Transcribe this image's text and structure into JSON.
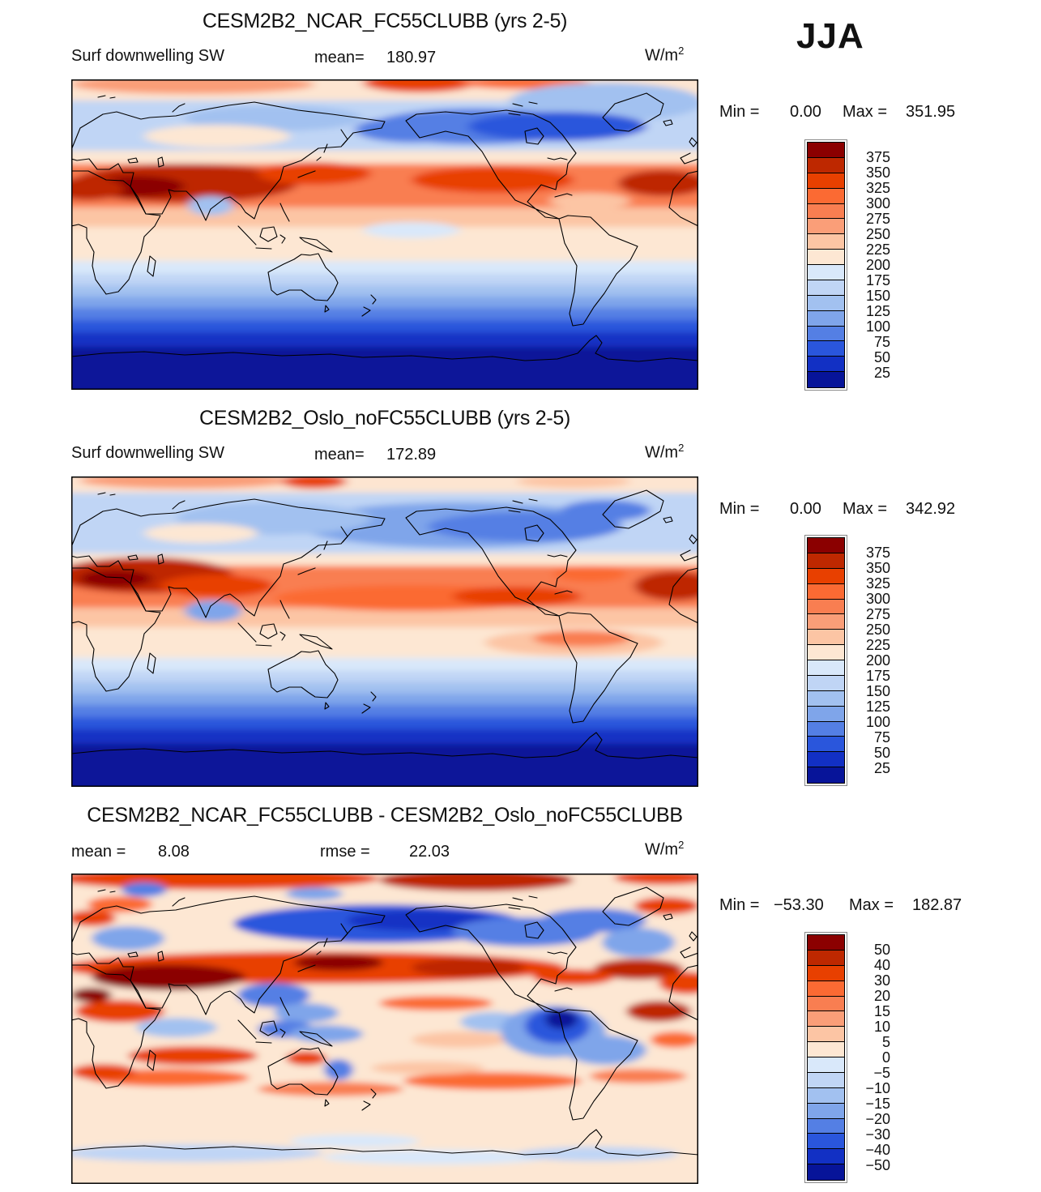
{
  "season_label": "JJA",
  "palette": [
    "#8B0000",
    "#BE2800",
    "#E84000",
    "#FB6A33",
    "#F97E51",
    "#FA9E78",
    "#FCC5A4",
    "#FDE7D3",
    "#D9E8FA",
    "#C0D5F5",
    "#A2C1F0",
    "#7FA5EA",
    "#547FE4",
    "#2A56DC",
    "#1230C4",
    "#071499"
  ],
  "panels": [
    {
      "title": "CESM2B2_NCAR_FC55CLUBB (yrs 2-5)",
      "variable": "Surf downwelling SW",
      "mean_label": "mean=",
      "mean_value": "180.97",
      "units_base": "W/m",
      "units_exp": "2",
      "min_label": "Min =",
      "min_value": "0.00",
      "max_label": "Max =",
      "max_value": "351.95",
      "colorbar_labels": [
        "375",
        "350",
        "325",
        "300",
        "275",
        "250",
        "225",
        "200",
        "175",
        "150",
        "125",
        "100",
        "75",
        "50",
        "25"
      ]
    },
    {
      "title": "CESM2B2_Oslo_noFC55CLUBB (yrs 2-5)",
      "variable": "Surf downwelling SW",
      "mean_label": "mean=",
      "mean_value": "172.89",
      "units_base": "W/m",
      "units_exp": "2",
      "min_label": "Min =",
      "min_value": "0.00",
      "max_label": "Max =",
      "max_value": "342.92",
      "colorbar_labels": [
        "375",
        "350",
        "325",
        "300",
        "275",
        "250",
        "225",
        "200",
        "175",
        "150",
        "125",
        "100",
        "75",
        "50",
        "25"
      ]
    },
    {
      "title": "CESM2B2_NCAR_FC55CLUBB - CESM2B2_Oslo_noFC55CLUBB",
      "mean_label": "mean =",
      "mean_value": "8.08",
      "rmse_label": "rmse =",
      "rmse_value": "22.03",
      "units_base": "W/m",
      "units_exp": "2",
      "min_label": "Min =",
      "min_value": "−53.30",
      "max_label": "Max =",
      "max_value": "182.87",
      "colorbar_labels": [
        "50",
        "40",
        "30",
        "20",
        "15",
        "10",
        "5",
        "0",
        "−5",
        "−10",
        "−15",
        "−20",
        "−30",
        "−40",
        "−50"
      ]
    }
  ],
  "chart_data": [
    {
      "type": "heatmap",
      "subtype": "filled-contour global map",
      "title": "CESM2B2_NCAR_FC55CLUBB (yrs 2-5)",
      "variable": "Surf downwelling SW",
      "season": "JJA",
      "units": "W/m2",
      "mean": 180.97,
      "min": 0.0,
      "max": 351.95,
      "contour_levels": [
        25,
        50,
        75,
        100,
        125,
        150,
        175,
        200,
        225,
        250,
        275,
        300,
        325,
        350,
        375
      ],
      "colormap": "blue-to-red, 16 discrete levels",
      "legend_position": "right"
    },
    {
      "type": "heatmap",
      "subtype": "filled-contour global map",
      "title": "CESM2B2_Oslo_noFC55CLUBB (yrs 2-5)",
      "variable": "Surf downwelling SW",
      "season": "JJA",
      "units": "W/m2",
      "mean": 172.89,
      "min": 0.0,
      "max": 342.92,
      "contour_levels": [
        25,
        50,
        75,
        100,
        125,
        150,
        175,
        200,
        225,
        250,
        275,
        300,
        325,
        350,
        375
      ],
      "colormap": "blue-to-red, 16 discrete levels",
      "legend_position": "right"
    },
    {
      "type": "heatmap",
      "subtype": "filled-contour global map (difference)",
      "title": "CESM2B2_NCAR_FC55CLUBB - CESM2B2_Oslo_noFC55CLUBB",
      "variable": "Surf downwelling SW",
      "season": "JJA",
      "units": "W/m2",
      "mean": 8.08,
      "rmse": 22.03,
      "min": -53.3,
      "max": 182.87,
      "contour_levels": [
        -50,
        -40,
        -30,
        -20,
        -15,
        -10,
        -5,
        0,
        5,
        10,
        15,
        20,
        30,
        40,
        50
      ],
      "colormap": "blue-to-red, 16 discrete levels",
      "legend_position": "right"
    }
  ]
}
